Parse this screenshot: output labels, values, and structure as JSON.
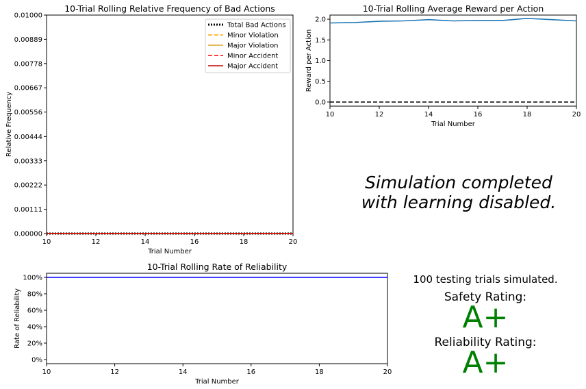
{
  "chart_data": [
    {
      "type": "line",
      "title": "10-Trial Rolling Relative Frequency of Bad Actions",
      "xlabel": "Trial Number",
      "ylabel": "Relative Frequency",
      "xlim": [
        10,
        20
      ],
      "ylim": [
        0,
        0.01
      ],
      "x_ticks": [
        "10",
        "12",
        "14",
        "16",
        "18",
        "20"
      ],
      "y_ticks": [
        "0.00000",
        "0.00111",
        "0.00222",
        "0.00333",
        "0.00444",
        "0.00556",
        "0.00667",
        "0.00778",
        "0.00889",
        "0.01000"
      ],
      "legend_position": "top-right",
      "x": [
        10,
        11,
        12,
        13,
        14,
        15,
        16,
        17,
        18,
        19,
        20
      ],
      "series": [
        {
          "name": "Total Bad Actions",
          "color": "#000000",
          "style": "dotted",
          "values": [
            0,
            0,
            0,
            0,
            0,
            0,
            0,
            0,
            0,
            0,
            0
          ]
        },
        {
          "name": "Minor Violation",
          "color": "#ffa500",
          "style": "dashed",
          "values": [
            0,
            0,
            0,
            0,
            0,
            0,
            0,
            0,
            0,
            0,
            0
          ]
        },
        {
          "name": "Major Violation",
          "color": "#daa520",
          "style": "solid",
          "values": [
            0,
            0,
            0,
            0,
            0,
            0,
            0,
            0,
            0,
            0,
            0
          ]
        },
        {
          "name": "Minor Accident",
          "color": "#ff0000",
          "style": "dashed",
          "values": [
            0,
            0,
            0,
            0,
            0,
            0,
            0,
            0,
            0,
            0,
            0
          ]
        },
        {
          "name": "Major Accident",
          "color": "#cc0000",
          "style": "solid",
          "values": [
            0,
            0,
            0,
            0,
            0,
            0,
            0,
            0,
            0,
            0,
            0
          ]
        }
      ]
    },
    {
      "type": "line",
      "title": "10-Trial Rolling Average Reward per Action",
      "xlabel": "Trial Number",
      "ylabel": "Reward per Action",
      "xlim": [
        10,
        20
      ],
      "ylim": [
        -0.1,
        2.1
      ],
      "x_ticks": [
        "10",
        "12",
        "14",
        "16",
        "18",
        "20"
      ],
      "y_ticks": [
        "0.0",
        "0.5",
        "1.0",
        "1.5",
        "2.0"
      ],
      "x": [
        10,
        11,
        12,
        13,
        14,
        15,
        16,
        17,
        18,
        19,
        20
      ],
      "series": [
        {
          "color": "#1f77b4",
          "style": "solid",
          "values": [
            1.91,
            1.92,
            1.95,
            1.96,
            1.99,
            1.96,
            1.97,
            1.97,
            2.02,
            1.99,
            1.96
          ]
        },
        {
          "color": "#000000",
          "style": "dashed",
          "values": [
            0,
            0,
            0,
            0,
            0,
            0,
            0,
            0,
            0,
            0,
            0
          ]
        }
      ]
    },
    {
      "type": "line",
      "title": "10-Trial Rolling Rate of Reliability",
      "xlabel": "Trial Number",
      "ylabel": "Rate of Reliability",
      "xlim": [
        10,
        20
      ],
      "ylim": [
        -5,
        105
      ],
      "x_ticks": [
        "10",
        "12",
        "14",
        "16",
        "18",
        "20"
      ],
      "y_ticks": [
        "0%",
        "20%",
        "40%",
        "60%",
        "80%",
        "100%"
      ],
      "x": [
        10,
        11,
        12,
        13,
        14,
        15,
        16,
        17,
        18,
        19,
        20
      ],
      "series": [
        {
          "color": "#0000ff",
          "style": "solid",
          "values": [
            100,
            100,
            100,
            100,
            100,
            100,
            100,
            100,
            100,
            100,
            100
          ]
        }
      ]
    }
  ],
  "message": {
    "line1": "Simulation completed",
    "line2": "with learning disabled."
  },
  "summary": {
    "trials_text": "100 testing trials simulated.",
    "safety_label": "Safety Rating:",
    "safety_grade": "A+",
    "reliability_label": "Reliability Rating:",
    "reliability_grade": "A+",
    "grade_color": "#008000"
  }
}
